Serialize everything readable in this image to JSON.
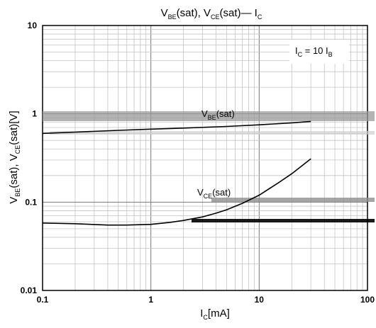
{
  "chart_data": {
    "type": "line",
    "title": {
      "main": "V",
      "sub1": "BE",
      "mid": "(sat), V",
      "sub2": "CE",
      "tail": "(sat)— I",
      "sub3": "C"
    },
    "xlabel": {
      "main": "I",
      "sub": "C",
      "tail": "[mA]"
    },
    "ylabel": {
      "a": "V",
      "a_sub": "BE",
      "b": "(sat), V",
      "b_sub": "CE",
      "c": "(sat)[V]"
    },
    "x_scale": "log",
    "y_scale": "log",
    "xlim": [
      0.1,
      100
    ],
    "ylim": [
      0.01,
      10
    ],
    "x_ticks": [
      {
        "value": 0.1,
        "label": "0.1"
      },
      {
        "value": 1,
        "label": "1"
      },
      {
        "value": 10,
        "label": "10"
      },
      {
        "value": 100,
        "label": "100"
      }
    ],
    "y_ticks": [
      {
        "value": 10,
        "label": "10"
      },
      {
        "value": 1,
        "label": "1"
      },
      {
        "value": 0.1,
        "label": "0.1"
      },
      {
        "value": 0.01,
        "label": "0.01"
      }
    ],
    "grid": true,
    "condition": {
      "main": "I",
      "sub1": "C",
      "mid": " = 10 I",
      "sub2": "B"
    },
    "series": [
      {
        "name": {
          "main": "V",
          "sub": "BE",
          "tail": "(sat)"
        },
        "color": "#000000",
        "x": [
          0.1,
          0.2,
          0.5,
          1,
          2,
          5,
          10,
          20,
          30
        ],
        "y": [
          0.6,
          0.62,
          0.65,
          0.67,
          0.69,
          0.72,
          0.75,
          0.79,
          0.82
        ]
      },
      {
        "name": {
          "main": "V",
          "sub": "CE",
          "tail": "(sat)"
        },
        "color": "#000000",
        "x": [
          0.1,
          0.2,
          0.4,
          0.6,
          1,
          1.5,
          2,
          3,
          4,
          5,
          7,
          10,
          15,
          20,
          30
        ],
        "y": [
          0.058,
          0.057,
          0.055,
          0.055,
          0.056,
          0.059,
          0.062,
          0.068,
          0.075,
          0.082,
          0.097,
          0.12,
          0.165,
          0.21,
          0.31
        ]
      }
    ]
  }
}
